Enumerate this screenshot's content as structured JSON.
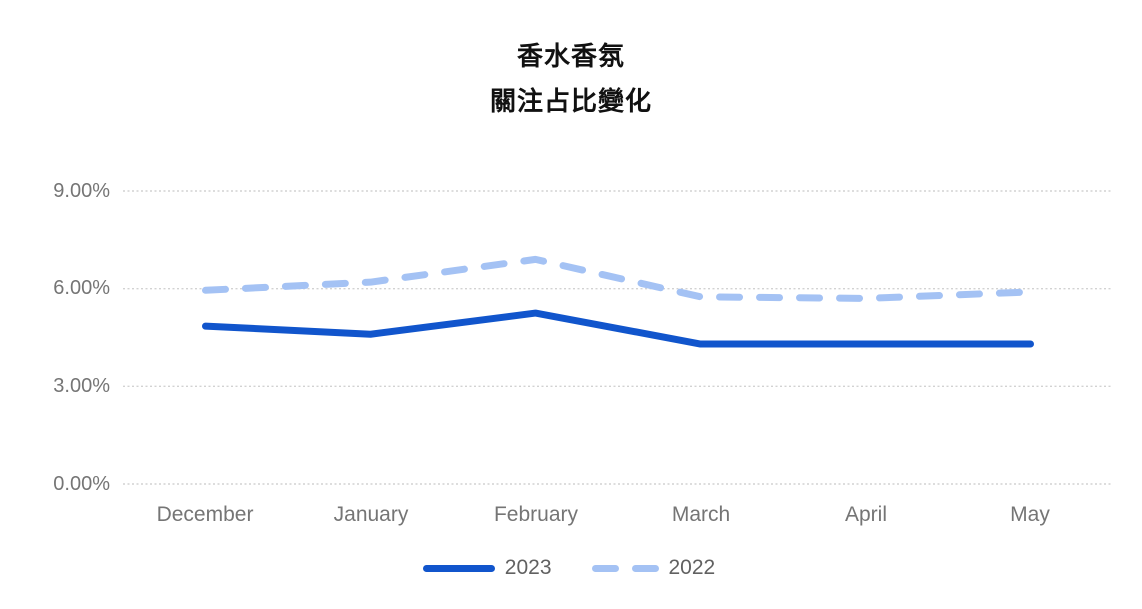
{
  "title": {
    "line1": "香水香氛",
    "line2": "關注占比變化"
  },
  "chart_data": {
    "type": "line",
    "categories": [
      "December",
      "January",
      "February",
      "March",
      "April",
      "May"
    ],
    "series": [
      {
        "name": "2023",
        "color": "#1155cc",
        "style": "solid",
        "values": [
          4.85,
          4.6,
          5.25,
          4.3,
          4.3,
          4.3
        ]
      },
      {
        "name": "2022",
        "color": "#a4c2f4",
        "style": "dashed",
        "values": [
          5.95,
          6.2,
          6.9,
          5.75,
          5.7,
          5.9
        ]
      }
    ],
    "yticks": [
      {
        "value": 9,
        "label": "9.00%"
      },
      {
        "value": 6,
        "label": "6.00%"
      },
      {
        "value": 3,
        "label": "3.00%"
      },
      {
        "value": 0,
        "label": "0.00%"
      }
    ],
    "ylim": [
      0,
      9
    ],
    "grid": true,
    "legend_position": "bottom",
    "gridline_color": "#d2d2d2",
    "text_color": "#757575"
  }
}
